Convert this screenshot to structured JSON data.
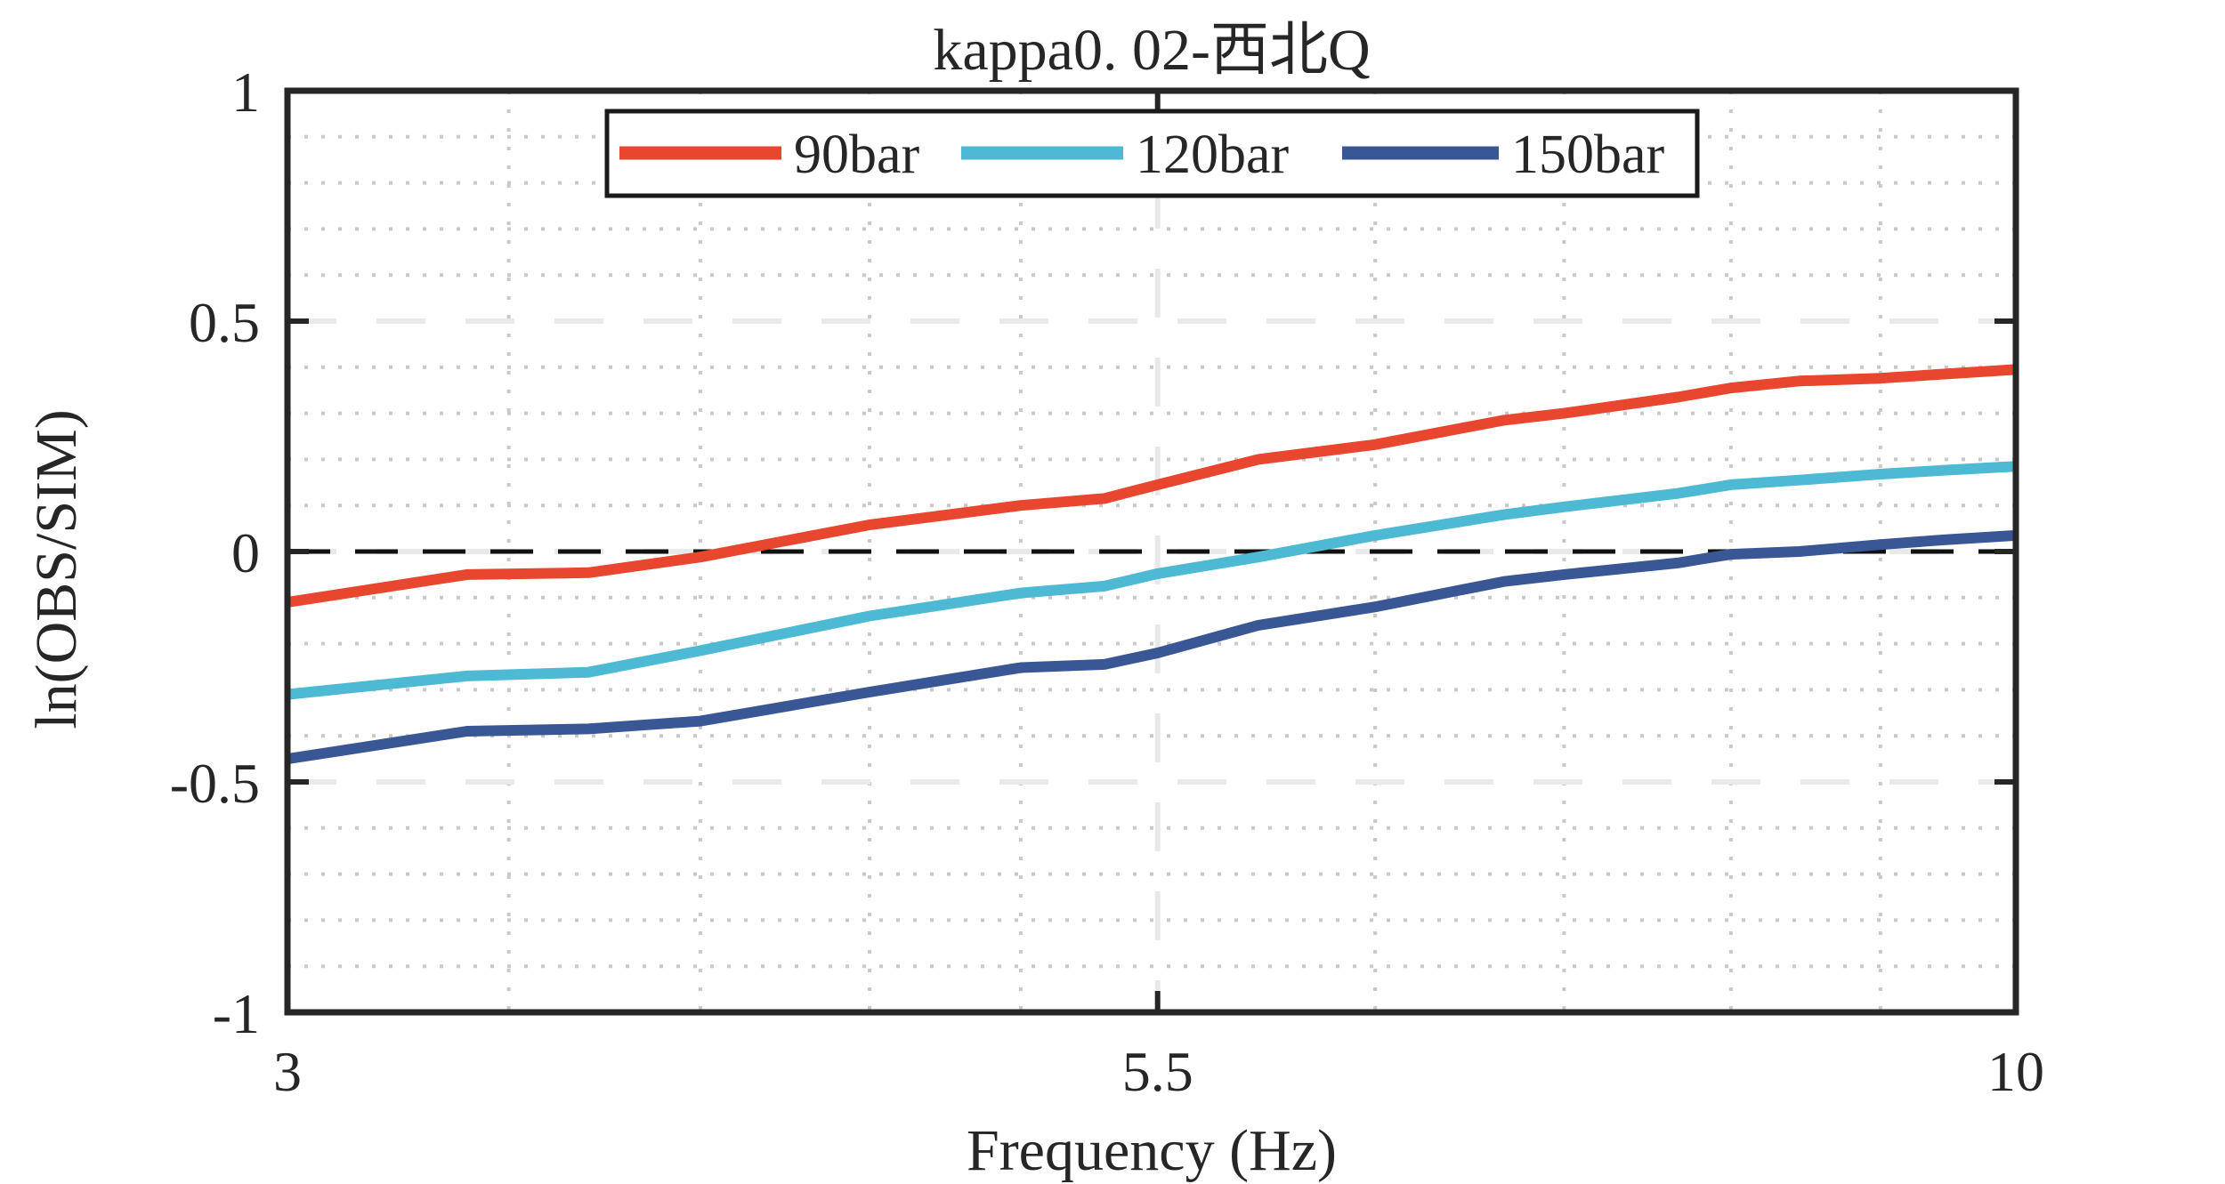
{
  "figure": {
    "background": "#ffffff"
  },
  "chart_data": {
    "type": "line",
    "title": "kappa0. 02-西北Q",
    "xlabel": "Frequency (Hz)",
    "ylabel": "ln(OBS/SIM)",
    "xscale": "log",
    "xlim": [
      3,
      10
    ],
    "ylim": [
      -1,
      1
    ],
    "xticks": [
      3,
      5.5,
      10
    ],
    "xtick_labels": [
      "3",
      "5.5",
      "10"
    ],
    "yticks": [
      1,
      0.5,
      0,
      -0.5,
      -1
    ],
    "ytick_labels": [
      "1",
      "0.5",
      "0",
      "-0.5",
      "-1"
    ],
    "x_minor_grid": [
      3.5,
      4,
      4.5,
      5,
      6.4,
      7.3,
      8.2,
      9.1
    ],
    "x_major_grid": [
      5.5
    ],
    "y_minor_grid": [
      0.9,
      0.8,
      0.7,
      0.6,
      0.4,
      0.3,
      0.2,
      0.1,
      -0.1,
      -0.2,
      -0.3,
      -0.4,
      -0.6,
      -0.7,
      -0.8,
      -0.9
    ],
    "y_major_grid": [
      0.5,
      0,
      -0.5
    ],
    "zero_line_y": 0,
    "grid": true,
    "legend_position": "top-inside",
    "x": [
      3,
      3.4,
      3.7,
      4,
      4.5,
      5,
      5.3,
      5.5,
      5.9,
      6.4,
      7,
      7.3,
      7.9,
      8.2,
      8.6,
      9.1,
      9.5,
      10
    ],
    "series": [
      {
        "name": "90bar",
        "color": "#e8462f",
        "values": [
          -0.11,
          -0.05,
          -0.046,
          -0.012,
          0.058,
          0.1,
          0.115,
          0.145,
          0.2,
          0.232,
          0.285,
          0.3,
          0.335,
          0.355,
          0.37,
          0.376,
          0.385,
          0.395
        ]
      },
      {
        "name": "120bar",
        "color": "#4db9d3",
        "values": [
          -0.31,
          -0.27,
          -0.262,
          -0.215,
          -0.14,
          -0.09,
          -0.075,
          -0.048,
          -0.012,
          0.035,
          0.08,
          0.097,
          0.126,
          0.145,
          0.155,
          0.168,
          0.176,
          0.185
        ]
      },
      {
        "name": "150bar",
        "color": "#3a5795",
        "values": [
          -0.45,
          -0.39,
          -0.385,
          -0.368,
          -0.305,
          -0.252,
          -0.245,
          -0.22,
          -0.16,
          -0.12,
          -0.065,
          -0.05,
          -0.025,
          -0.006,
          0.0,
          0.015,
          0.025,
          0.035
        ]
      }
    ],
    "colors": {
      "axis": "#262626",
      "zero_line": "#111111",
      "major_grid": "#e9e9e9",
      "minor_grid": "#c9c9c9",
      "legend_border": "#1a1a1a"
    }
  }
}
